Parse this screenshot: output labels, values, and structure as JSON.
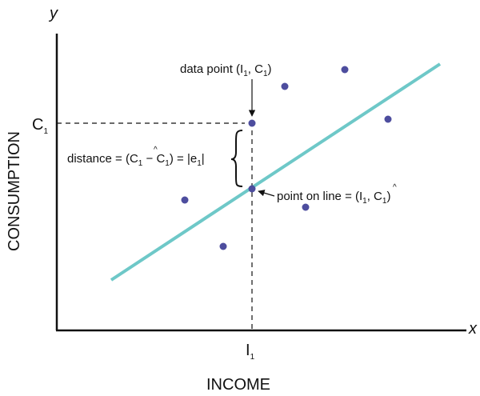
{
  "axes": {
    "x_var": "x",
    "y_var": "y",
    "x_title": "INCOME",
    "y_title": "CONSUMPTION",
    "x_tick": {
      "main": "I",
      "sub": "1"
    },
    "y_tick": {
      "main": "C",
      "sub": "1"
    }
  },
  "annotations": {
    "data_point": {
      "prefix": "data point (I",
      "sub1": "1",
      "mid": ", C",
      "sub2": "1",
      "suffix": ")"
    },
    "distance": {
      "prefix": "distance = (C",
      "sub1": "1",
      "mid": " − C",
      "hat": "^",
      "sub2": "1",
      "mid2": ") = |e",
      "sub3": "1",
      "suffix": "|"
    },
    "point_on_line": {
      "prefix": "point on line = (I",
      "sub1": "1",
      "mid": ", C",
      "hat": "^",
      "sub2": "1",
      "suffix": ")"
    }
  },
  "colors": {
    "regression_line": "#6ec8c8",
    "points": "#4d4d9e",
    "axes": "#111111"
  }
}
